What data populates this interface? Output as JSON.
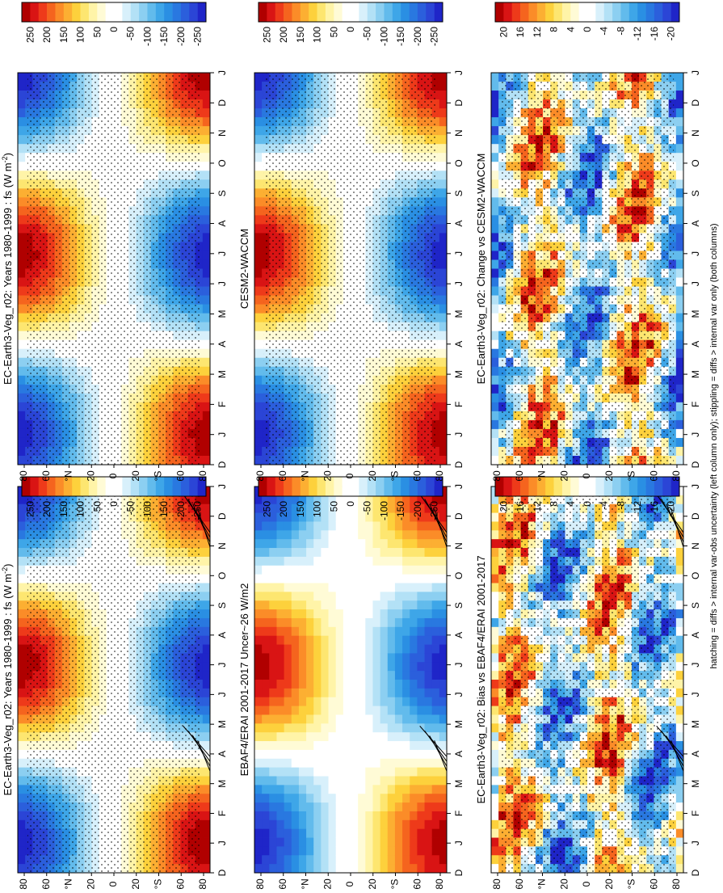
{
  "footnote": "hatching = diffs > internal var-obs uncertainty (left column only); stippling = diffs > internal var only (both columns)",
  "colors": {
    "full": [
      "#b00000",
      "#d91414",
      "#ee3a1a",
      "#f5641e",
      "#fb8c28",
      "#fcaf32",
      "#fdd13c",
      "#fde670",
      "#fff4a8",
      "#fffbd6",
      "#ffffff",
      "#ffffff",
      "#d8f0fb",
      "#b3e1f6",
      "#8ccff1",
      "#62bbec",
      "#3ea6e8",
      "#2a8fe3",
      "#2978e0",
      "#2b5fdc",
      "#2b45d6",
      "#1f25c8"
    ]
  },
  "chart_data": [
    {
      "id": "model-mean",
      "type": "heatmap",
      "title": "EC-Earth3-Veg_r02: Years 1980-1999 : fs (W m",
      "title_sup": "-2",
      "title_end": ")",
      "x": [
        "D",
        "J",
        "F",
        "M",
        "A",
        "M",
        "J",
        "J",
        "A",
        "S",
        "O",
        "N",
        "D",
        "J"
      ],
      "y_ticks": [
        "80",
        "60",
        "°N",
        "20",
        "0",
        "20",
        "°S",
        "60",
        "80"
      ],
      "colorbar": {
        "labels": [
          "250",
          "200",
          "150",
          "100",
          "50",
          "0",
          "-50",
          "-100",
          "-150",
          "-200",
          "-250"
        ],
        "range": [
          -275,
          275
        ],
        "levels": 22
      },
      "stippling": true,
      "hatching": true,
      "field": {
        "kind": "seasonal",
        "amp": 270
      }
    },
    {
      "id": "obs-mean",
      "type": "heatmap",
      "title": "EBAF4/ERAI 2001-2017 Uncer~26 W/m2",
      "x": [
        "D",
        "J",
        "F",
        "M",
        "A",
        "M",
        "J",
        "J",
        "A",
        "S",
        "O",
        "N",
        "D",
        "J"
      ],
      "y_ticks": [
        "80",
        "60",
        "°N",
        "20",
        "0",
        "20",
        "°S",
        "60",
        "80"
      ],
      "colorbar": {
        "labels": [
          "250",
          "200",
          "150",
          "100",
          "50",
          "0",
          "-50",
          "-100",
          "-150",
          "-200",
          "-250"
        ],
        "range": [
          -275,
          275
        ],
        "levels": 22
      },
      "stippling": false,
      "hatching": true,
      "field": {
        "kind": "seasonal",
        "amp": 265
      }
    },
    {
      "id": "model-bias",
      "type": "heatmap",
      "title": "EC-Earth3-Veg_r02: Bias vs EBAF4/ERAI 2001-2017",
      "x": [
        "D",
        "J",
        "F",
        "M",
        "A",
        "M",
        "J",
        "J",
        "A",
        "S",
        "O",
        "N",
        "D",
        "J"
      ],
      "y_ticks": [
        "80",
        "60",
        "°N",
        "20",
        "0",
        "20",
        "°S",
        "60",
        "80"
      ],
      "colorbar": {
        "labels": [
          "20",
          "16",
          "12",
          "8",
          "4",
          "0",
          "-4",
          "-8",
          "-12",
          "-16",
          "-20"
        ],
        "range": [
          -22,
          22
        ],
        "levels": 22
      },
      "stippling": true,
      "hatching": true,
      "field": {
        "kind": "noisy",
        "amp": 22,
        "seed": 3
      }
    },
    {
      "id": "other-mean",
      "type": "heatmap",
      "title": "EC-Earth3-Veg_r02: Years 1980-1999 : fs (W m",
      "title_sup": "-2",
      "title_end": ")",
      "x": [
        "D",
        "J",
        "F",
        "M",
        "A",
        "M",
        "J",
        "J",
        "A",
        "S",
        "O",
        "N",
        "D",
        "J"
      ],
      "y_ticks": [
        "80",
        "60",
        "°N",
        "20",
        "0",
        "20",
        "°S",
        "60",
        "80"
      ],
      "colorbar": {
        "labels": [
          "250",
          "200",
          "150",
          "100",
          "50",
          "0",
          "-50",
          "-100",
          "-150",
          "-200",
          "-250"
        ],
        "range": [
          -275,
          275
        ],
        "levels": 22
      },
      "stippling": true,
      "hatching": false,
      "field": {
        "kind": "seasonal",
        "amp": 268
      }
    },
    {
      "id": "cesm-mean",
      "type": "heatmap",
      "title": "CESM2-WACCM",
      "x": [
        "D",
        "J",
        "F",
        "M",
        "A",
        "M",
        "J",
        "J",
        "A",
        "S",
        "O",
        "N",
        "D",
        "J"
      ],
      "y_ticks": [
        "80",
        "60",
        "°N",
        "20",
        "0",
        "20",
        "°S",
        "60",
        "80"
      ],
      "colorbar": {
        "labels": [
          "250",
          "200",
          "150",
          "100",
          "50",
          "0",
          "-50",
          "-100",
          "-150",
          "-200",
          "-250"
        ],
        "range": [
          -275,
          275
        ],
        "levels": 22
      },
      "stippling": true,
      "hatching": false,
      "field": {
        "kind": "seasonal",
        "amp": 266
      }
    },
    {
      "id": "model-change",
      "type": "heatmap",
      "title": "EC-Earth3-Veg_r02: Change vs CESM2-WACCM",
      "x": [
        "D",
        "J",
        "F",
        "M",
        "A",
        "M",
        "J",
        "J",
        "A",
        "S",
        "O",
        "N",
        "D",
        "J"
      ],
      "y_ticks": [
        "80",
        "60",
        "°N",
        "20",
        "0",
        "20",
        "°S",
        "60",
        "80"
      ],
      "colorbar": {
        "labels": [
          "20",
          "16",
          "12",
          "8",
          "4",
          "0",
          "-4",
          "-8",
          "-12",
          "-16",
          "-20"
        ],
        "range": [
          -22,
          22
        ],
        "levels": 22
      },
      "stippling": true,
      "hatching": false,
      "field": {
        "kind": "noisy",
        "amp": 22,
        "seed": 11
      }
    }
  ]
}
